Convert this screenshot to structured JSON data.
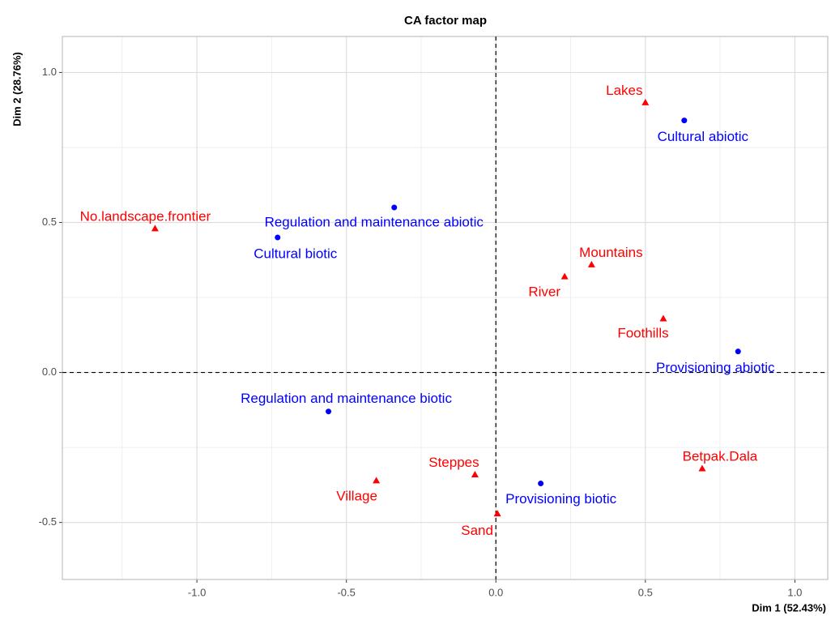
{
  "chart_data": {
    "type": "scatter",
    "title": "CA factor map",
    "x_label": "Dim 1 (52.43%)",
    "y_label": "Dim 2 (28.76%)",
    "xlim": [
      -1.45,
      1.11
    ],
    "ylim": [
      -0.69,
      1.12
    ],
    "xticks": [
      {
        "value": -1,
        "label": "-1.0"
      },
      -0.5,
      {
        "value": 0,
        "label": "0.0"
      },
      0.5,
      {
        "value": 1,
        "label": "1.0"
      }
    ],
    "yticks": [
      -0.5,
      {
        "value": 0,
        "label": "0.0"
      },
      0.5,
      {
        "value": 1,
        "label": "1.0"
      }
    ],
    "minor_xticks": [
      -1.25,
      -0.75,
      -0.25,
      0.25,
      0.75
    ],
    "minor_yticks": [
      -0.25,
      0.25,
      0.75
    ],
    "grid": true,
    "reference_lines": {
      "x": 0,
      "y": 0
    },
    "series": [
      {
        "color": "#ff0000",
        "marker": "triangle",
        "points": [
          {
            "label": "Lakes",
            "x": 0.5,
            "y": 0.9
          },
          {
            "label": "Mountains",
            "x": 0.32,
            "y": 0.36
          },
          {
            "label": "River",
            "x": 0.23,
            "y": 0.32
          },
          {
            "label": "Foothills",
            "x": 0.56,
            "y": 0.18
          },
          {
            "label": "No.landscape.frontier",
            "x": -1.14,
            "y": 0.48
          },
          {
            "label": "Betpak.Dala",
            "x": 0.69,
            "y": -0.32
          },
          {
            "label": "Steppes",
            "x": -0.07,
            "y": -0.34
          },
          {
            "label": "Village",
            "x": -0.4,
            "y": -0.36
          },
          {
            "label": "Sand",
            "x": 0.005,
            "y": -0.47
          }
        ]
      },
      {
        "color": "#0000ff",
        "marker": "circle",
        "points": [
          {
            "label": "Cultural abiotic",
            "x": 0.63,
            "y": 0.84
          },
          {
            "label": "Regulation and maintenance abiotic",
            "x": -0.34,
            "y": 0.55
          },
          {
            "label": "Cultural biotic",
            "x": -0.73,
            "y": 0.45
          },
          {
            "label": "Provisioning abiotic",
            "x": 0.81,
            "y": 0.07
          },
          {
            "label": "Regulation and maintenance biotic",
            "x": -0.56,
            "y": -0.13
          },
          {
            "label": "Provisioning biotic",
            "x": 0.15,
            "y": -0.37
          }
        ]
      }
    ]
  }
}
